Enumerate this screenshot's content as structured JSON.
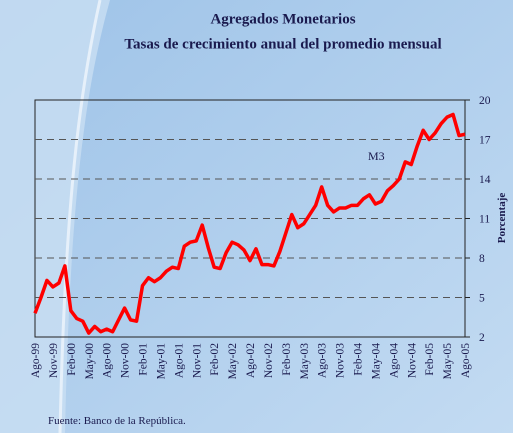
{
  "chart_data": {
    "type": "line",
    "title": "Agregados Monetarios",
    "subtitle": "Tasas de crecimiento anual del promedio mensual",
    "y_label": "Porcentaje",
    "source": "Fuente:  Banco de la República.",
    "annotation": "M3",
    "categories": [
      "Ago-99",
      null,
      null,
      "Nov-99",
      null,
      null,
      "Feb-00",
      null,
      null,
      "May-00",
      null,
      null,
      "Ago-00",
      null,
      null,
      "Nov-00",
      null,
      null,
      "Feb-01",
      null,
      null,
      "May-01",
      null,
      null,
      "Ago-01",
      null,
      null,
      "Nov-01",
      null,
      null,
      "Feb-02",
      null,
      null,
      "May-02",
      null,
      null,
      "Ago-02",
      null,
      null,
      "Nov-02",
      null,
      null,
      "Feb-03",
      null,
      null,
      "May-03",
      null,
      null,
      "Ago-03",
      null,
      null,
      "Nov-03",
      null,
      null,
      "Feb-04",
      null,
      null,
      "May-04",
      null,
      null,
      "Ago-04",
      null,
      null,
      "Nov-04",
      null,
      null,
      "Feb-05",
      null,
      null,
      "May-05",
      null,
      null,
      "Ago-05"
    ],
    "series": [
      {
        "name": "M3",
        "color": "#ff0000",
        "values": [
          3.8,
          5.0,
          6.3,
          5.8,
          6.1,
          7.4,
          4.0,
          3.4,
          3.2,
          2.3,
          2.8,
          2.4,
          2.6,
          2.4,
          3.3,
          4.2,
          3.3,
          3.2,
          5.9,
          6.5,
          6.2,
          6.5,
          7.0,
          7.3,
          7.2,
          8.9,
          9.2,
          9.3,
          10.5,
          8.8,
          7.3,
          7.2,
          8.4,
          9.2,
          9.0,
          8.6,
          7.8,
          8.7,
          7.5,
          7.5,
          7.4,
          8.5,
          9.9,
          11.3,
          10.3,
          10.6,
          11.3,
          12.0,
          13.4,
          12.0,
          11.5,
          11.8,
          11.8,
          12.0,
          12.0,
          12.5,
          12.8,
          12.1,
          12.3,
          13.1,
          13.5,
          14.0,
          15.3,
          15.1,
          16.5,
          17.7,
          17.0,
          17.5,
          18.2,
          18.7,
          18.9,
          17.3,
          17.4
        ]
      }
    ],
    "ylim": [
      2,
      20
    ],
    "yticks": [
      2,
      5,
      8,
      11,
      14,
      17,
      20
    ],
    "grid": true,
    "y_axis_side": "right"
  }
}
